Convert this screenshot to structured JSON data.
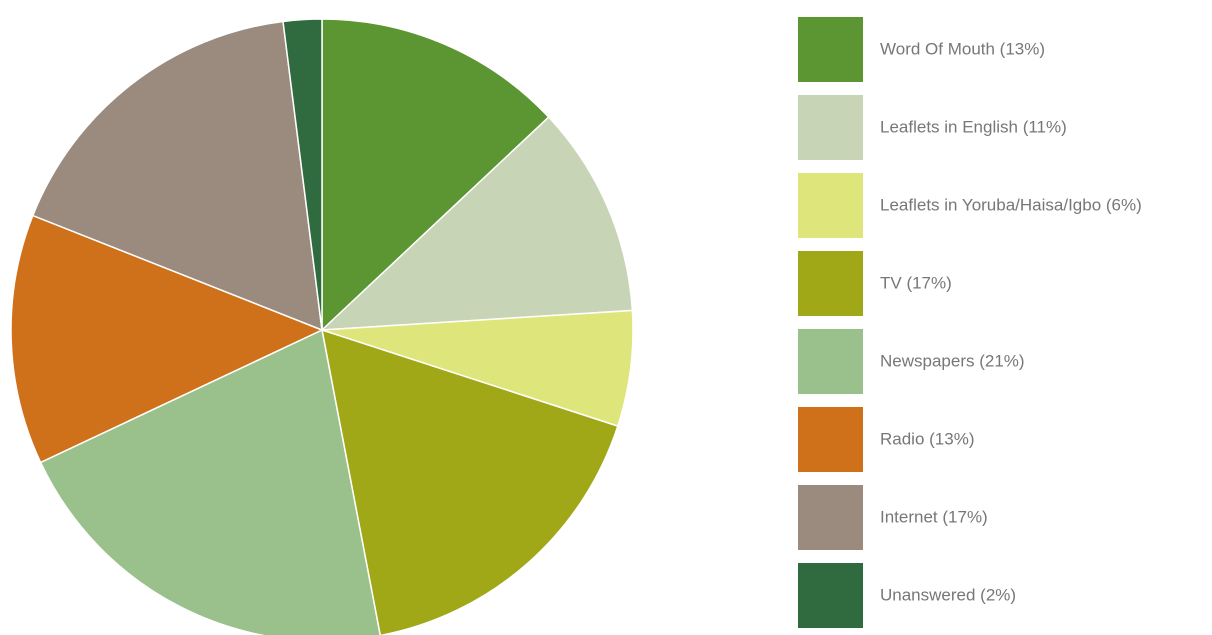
{
  "chart_data": {
    "type": "pie",
    "categories": [
      "Word Of Mouth (13%)",
      "Leaflets in English (11%)",
      "Leaflets in Yoruba/Haisa/Igbo (6%)",
      "TV (17%)",
      "Newspapers (21%)",
      "Radio (13%)",
      "Internet (17%)",
      "Unanswered (2%)"
    ],
    "values": [
      13,
      11,
      6,
      17,
      21,
      13,
      17,
      2
    ],
    "colors": [
      "#5b9632",
      "#c8d4b6",
      "#dee57a",
      "#a0a818",
      "#9ac08c",
      "#cf701a",
      "#9a8b7e",
      "#2f6b3e"
    ],
    "legend": "right"
  }
}
